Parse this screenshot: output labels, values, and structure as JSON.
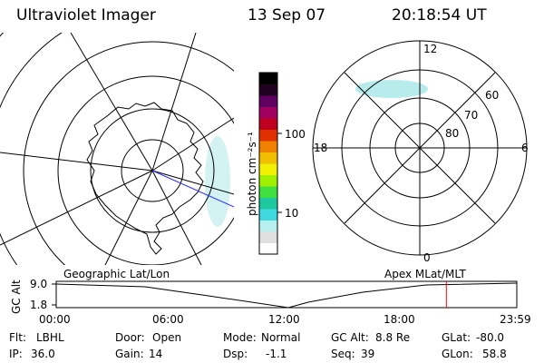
{
  "header": {
    "instrument": "Ultraviolet Imager",
    "date": "13 Sep 07",
    "time": "20:18:54 UT"
  },
  "colorbar": {
    "unit_label": "photon cm⁻²s⁻¹",
    "ticks": [
      "100",
      "10"
    ],
    "colors": [
      "#ffffff",
      "#e0e0e0",
      "#b8f0f0",
      "#40d8e0",
      "#20c8a0",
      "#40e040",
      "#a0f000",
      "#f0f000",
      "#f0c000",
      "#f08000",
      "#e03000",
      "#c00020",
      "#a00060",
      "#600060",
      "#200020",
      "#000000"
    ]
  },
  "left_map": {
    "caption": "Geographic Lat/Lon"
  },
  "right_dial": {
    "caption": "Apex MLat/MLT",
    "mlt_labels": {
      "top": "12",
      "bottom": "0",
      "left": "18",
      "right": "6"
    },
    "mlat_labels": [
      "60",
      "70",
      "80"
    ]
  },
  "altitude_plot": {
    "ylabel": "GC Alt",
    "yticks": [
      "9.0",
      "1.8"
    ],
    "xticks": [
      "00:00",
      "06:00",
      "12:00",
      "18:00",
      "23:59"
    ],
    "marker_time": "20:18:54",
    "marker_color": "#ff0000"
  },
  "status": {
    "flt_label": "Flt:",
    "flt_value": "LBHL",
    "ip_label": "IP:",
    "ip_value": "36.0",
    "door_label": "Door:",
    "door_value": "Open",
    "gain_label": "Gain:",
    "gain_value": "14",
    "mode_label": "Mode:",
    "mode_value": "Normal",
    "dsp_label": "Dsp:",
    "dsp_value": "-1.1",
    "gcalt_label": "GC Alt:",
    "gcalt_value": "8.8 Re",
    "seq_label": "Seq:",
    "seq_value": "39",
    "glat_label": "GLat:",
    "glat_value": "-80.0",
    "glon_label": "GLon:",
    "glon_value": "58.8"
  }
}
